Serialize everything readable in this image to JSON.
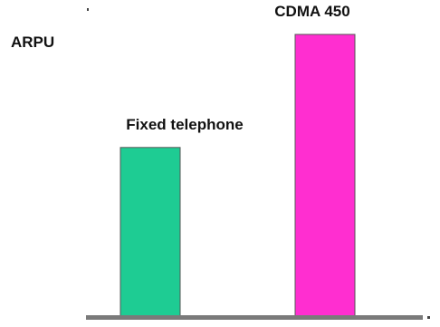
{
  "chart_data": {
    "type": "bar",
    "title": "",
    "xlabel": "",
    "ylabel": "ARPU",
    "categories": [
      "Fixed telephone",
      "CDMA 450"
    ],
    "values": [
      0.6,
      1.0
    ],
    "ylim": [
      0,
      1.0
    ],
    "grid": false,
    "legend": "none",
    "bar_colors": [
      "#1ecc93",
      "#ff2ed0"
    ],
    "axis_color": "#7a7a7a"
  }
}
